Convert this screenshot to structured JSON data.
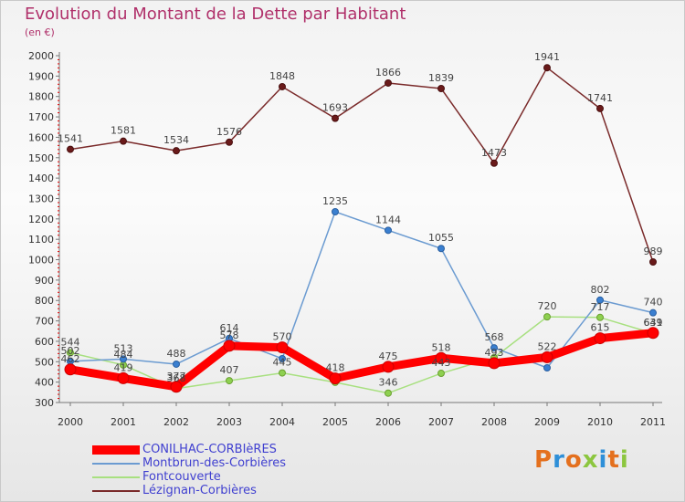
{
  "chart_data": {
    "type": "line",
    "title": "Evolution du Montant de la Dette par Habitant",
    "subtitle": "(en €)",
    "x": [
      "2000",
      "2001",
      "2002",
      "2003",
      "2004",
      "2005",
      "2006",
      "2007",
      "2008",
      "2009",
      "2010",
      "2011"
    ],
    "y_ticks": [
      "300",
      "400",
      "500",
      "600",
      "700",
      "800",
      "900",
      "1000",
      "1100",
      "1200",
      "1300",
      "1400",
      "1500",
      "1600",
      "1700",
      "1800",
      "1900",
      "2000"
    ],
    "ylim": [
      300,
      2000
    ],
    "grid": false,
    "legend_position": "bottom-left",
    "series": [
      {
        "name": "CONILHAC-CORBIèRES",
        "color": "#ff0000",
        "values": [
          462,
          419,
          377,
          578,
          570,
          418,
          475,
          518,
          493,
          522,
          615,
          641
        ],
        "labels": [
          "462",
          "419",
          "377",
          "578",
          "570",
          "418",
          "475",
          "518",
          "493",
          "522",
          "615",
          "641"
        ]
      },
      {
        "name": "Montbrun-des-Corbières",
        "color": "#6b9bd1",
        "values": [
          502,
          513,
          488,
          614,
          515,
          1235,
          1144,
          1055,
          568,
          470,
          802,
          740
        ],
        "labels": [
          "502",
          "513",
          "488",
          "614",
          "",
          "1235",
          "1144",
          "1055",
          "568",
          "",
          "802",
          "740"
        ]
      },
      {
        "name": "Fontcouverte",
        "color": "#a8e080",
        "values": [
          544,
          484,
          368,
          407,
          445,
          399,
          346,
          443,
          520,
          720,
          717,
          639
        ],
        "labels": [
          "544",
          "484",
          "368",
          "407",
          "445",
          "",
          "346",
          "443",
          "",
          "720",
          "717",
          "639"
        ]
      },
      {
        "name": "Lézignan-Corbières",
        "color": "#7a2a2a",
        "values": [
          1541,
          1581,
          1534,
          1576,
          1848,
          1693,
          1866,
          1839,
          1473,
          1941,
          1741,
          989
        ],
        "labels": [
          "1541",
          "1581",
          "1534",
          "1576",
          "1848",
          "1693",
          "1866",
          "1839",
          "1473",
          "1941",
          "1741",
          "989"
        ]
      }
    ]
  },
  "brand": {
    "logo_letters": [
      "P",
      "r",
      "o",
      "x",
      "i",
      "t",
      "i"
    ]
  },
  "colors": {
    "title": "#b0306a",
    "legend_text": "#4040d0",
    "axis": "#777777"
  }
}
